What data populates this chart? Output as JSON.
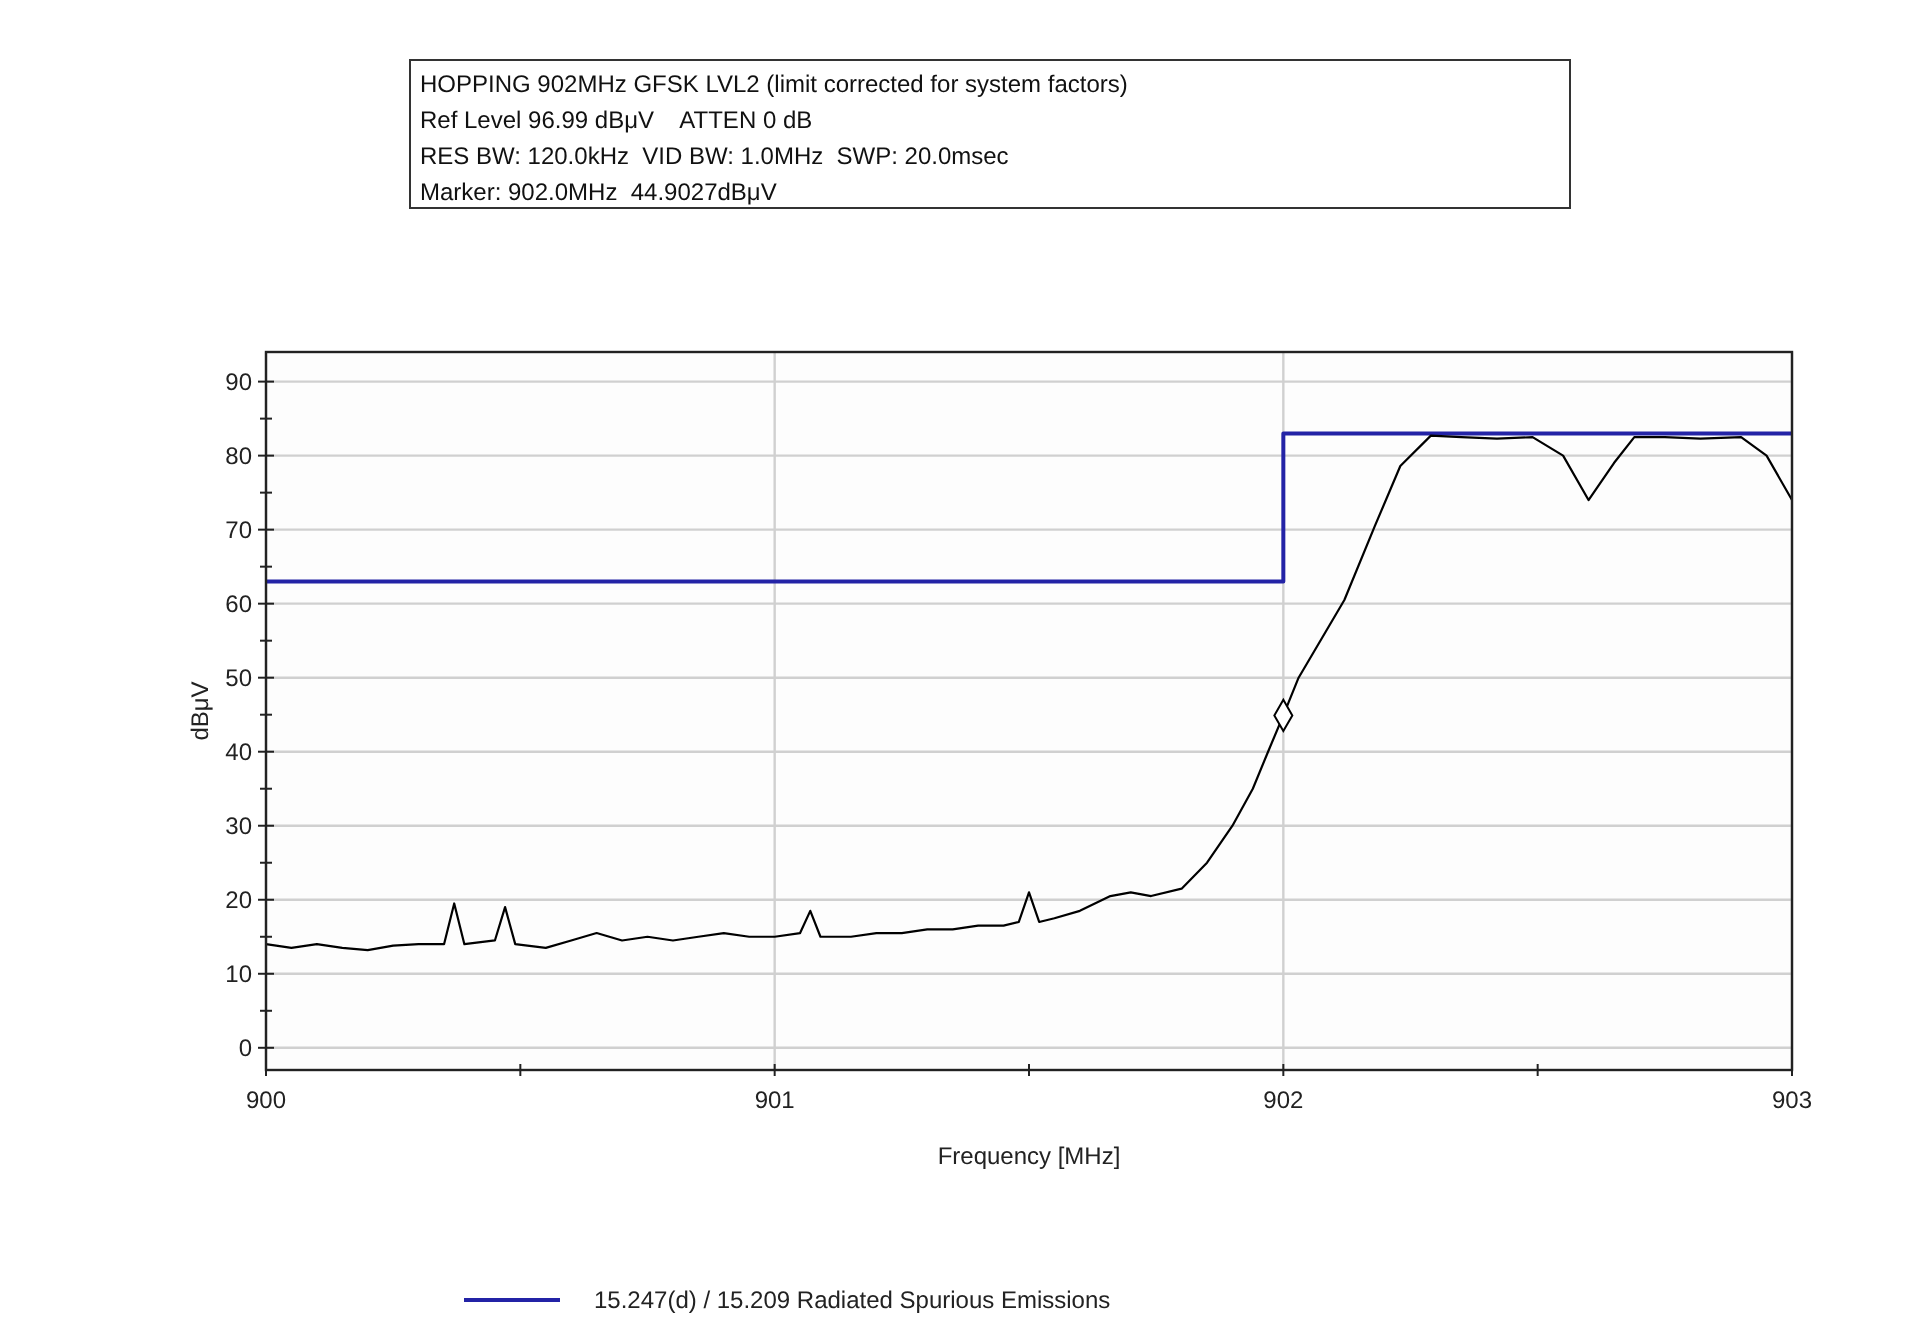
{
  "chart_data": {
    "type": "line",
    "title": "HOPPING 902MHz GFSK LVL2 (limit corrected for system factors)",
    "annotations": [
      "Ref Level 96.99 dBμV    ATTEN 0 dB",
      "RES BW: 120.0kHz  VID BW: 1.0MHz  SWP: 20.0msec",
      "Marker: 902.0MHz  44.9027dBμV"
    ],
    "xlabel": "Frequency [MHz]",
    "ylabel": "dBμV",
    "xlim": [
      900,
      903
    ],
    "ylim": [
      -3,
      94
    ],
    "xticks": [
      900,
      {
        "value": 900.5,
        "label": null
      },
      901,
      {
        "value": 901.5,
        "label": null
      },
      902,
      {
        "value": 902.5,
        "label": null
      },
      903
    ],
    "yticks": [
      0,
      {
        "value": 5,
        "label": null
      },
      10,
      {
        "value": 15,
        "label": null
      },
      20,
      {
        "value": 25,
        "label": null
      },
      30,
      {
        "value": 35,
        "label": null
      },
      40,
      {
        "value": 45,
        "label": null
      },
      50,
      {
        "value": 55,
        "label": null
      },
      60,
      {
        "value": 65,
        "label": null
      },
      70,
      {
        "value": 75,
        "label": null
      },
      80,
      {
        "value": 85,
        "label": null
      },
      90
    ],
    "grid": true,
    "legend": "bottom",
    "line_style": "solid",
    "marker": "none",
    "series": [
      {
        "name": "15.247(d) / 15.209 Radiated Spurious Emissions",
        "color": "#2323a6",
        "x": [
          900,
          902,
          902,
          903
        ],
        "values": [
          63,
          63,
          83,
          83
        ]
      },
      {
        "color": "#000000",
        "x": [
          900,
          900.05,
          900.1,
          900.15,
          900.2,
          900.25,
          900.3,
          900.35,
          900.37,
          900.39,
          900.45,
          900.47,
          900.49,
          900.55,
          900.6,
          900.65,
          900.7,
          900.75,
          900.8,
          900.85,
          900.9,
          900.95,
          901,
          901.05,
          901.07,
          901.09,
          901.15,
          901.2,
          901.25,
          901.3,
          901.35,
          901.4,
          901.45,
          901.48,
          901.5,
          901.52,
          901.55,
          901.6,
          901.66,
          901.7,
          901.74,
          901.8,
          901.85,
          901.9,
          901.94,
          901.97,
          902,
          902.03,
          902.12,
          902.18,
          902.23,
          902.29,
          902.35,
          902.42,
          902.49,
          902.55,
          902.6,
          902.65,
          902.69,
          902.75,
          902.82,
          902.9,
          902.95,
          903
        ],
        "values": [
          14,
          13.5,
          14,
          13.5,
          13.2,
          13.8,
          14,
          14,
          19.5,
          14,
          14.5,
          19,
          14,
          13.5,
          14.5,
          15.5,
          14.5,
          15,
          14.5,
          15,
          15.5,
          15,
          15,
          15.5,
          18.5,
          15,
          15,
          15.5,
          15.5,
          16,
          16,
          16.5,
          16.5,
          17,
          21,
          17,
          17.5,
          18.5,
          20.5,
          21,
          20.5,
          21.5,
          25,
          30,
          35,
          40,
          44.9,
          50,
          60.5,
          70.5,
          78.6,
          82.7,
          82.5,
          82.3,
          82.5,
          80,
          74,
          79,
          82.5,
          82.5,
          82.3,
          82.5,
          80,
          74
        ]
      },
      {
        "type": "scatter",
        "marker": "diamond",
        "color": "#000000",
        "x": [
          902.0
        ],
        "values": [
          44.9
        ]
      }
    ]
  }
}
